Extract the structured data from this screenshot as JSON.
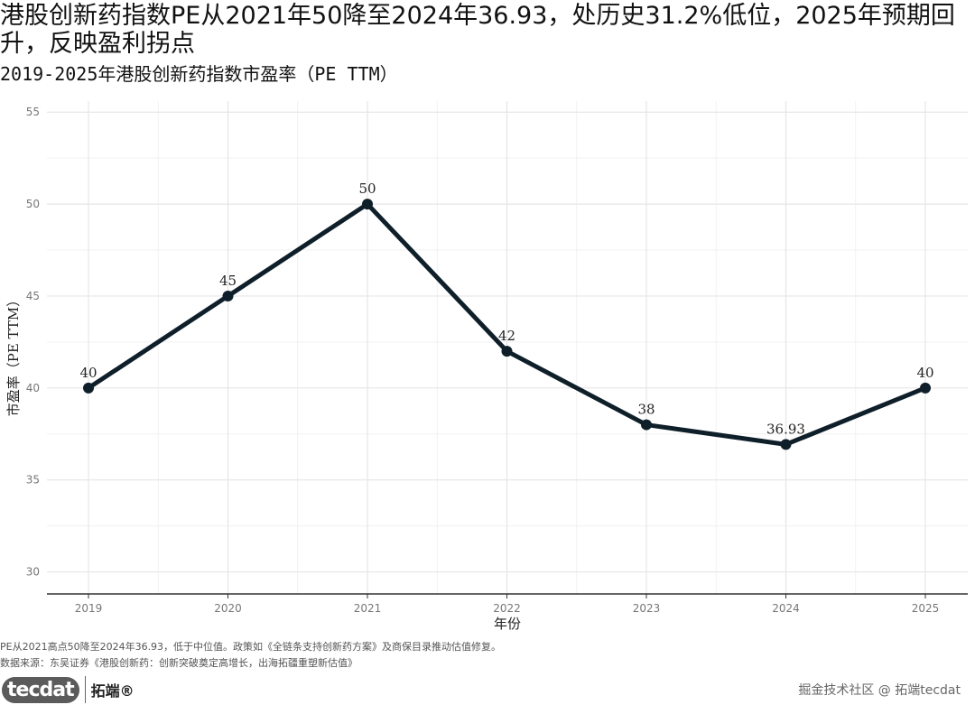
{
  "header": {
    "title": "港股创新药指数PE从2021年50降至2024年36.93，处历史31.2%低位，2025年预期回升，反映盈利拐点",
    "subtitle": "2019-2025年港股创新药指数市盈率（PE TTM）"
  },
  "footer": {
    "note": "PE从2021高点50降至2024年36.93，低于中位值。政策如《全链条支持创新药方案》及商保目录推动估值修复。",
    "source": "数据来源：东吴证券《港股创新药：创新突破奠定高增长，出海拓疆重塑新估值》",
    "brand_logo": "tecdat",
    "brand_name": "拓端®",
    "watermark": "掘金技术社区 @ 拓端tecdat"
  },
  "chart_data": {
    "type": "line",
    "x": [
      "2019",
      "2020",
      "2021",
      "2022",
      "2023",
      "2024",
      "2025"
    ],
    "series": [
      {
        "values": [
          40,
          45,
          50,
          42,
          38,
          36.93,
          40
        ]
      }
    ],
    "data_labels": [
      "40",
      "45",
      "50",
      "42",
      "38",
      "36.93",
      "40"
    ],
    "xlabel": "年份",
    "ylabel": "市盈率（PE TTM）",
    "ylim": [
      28.8,
      55.6
    ],
    "yticks": [
      30,
      35,
      40,
      45,
      50,
      55
    ],
    "grid": true,
    "line_color": "#0f1f2a",
    "grid_color": "#e6e6e6",
    "axis_color": "#333333"
  }
}
